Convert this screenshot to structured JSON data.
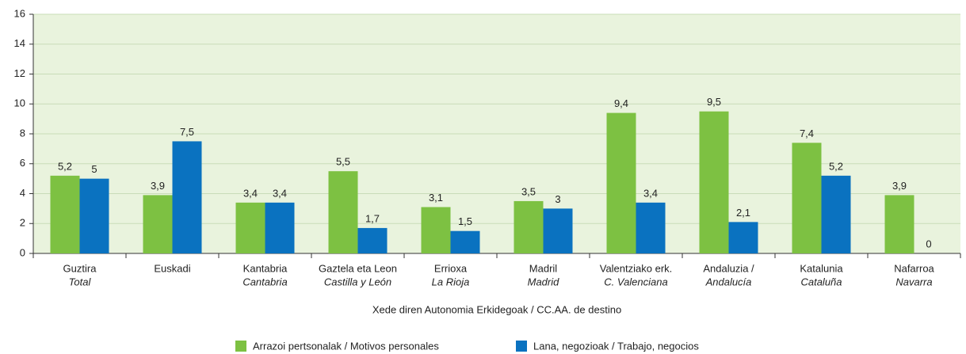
{
  "chart_data": {
    "type": "bar",
    "categories": [
      [
        "Guztira",
        "Total"
      ],
      [
        "Euskadi"
      ],
      [
        "Kantabria",
        "Cantabria"
      ],
      [
        "Gaztela eta Leon",
        "Castilla y León"
      ],
      [
        "Errioxa",
        "La Rioja"
      ],
      [
        "Madril",
        "Madrid"
      ],
      [
        "Valentziako erk.",
        "C. Valenciana"
      ],
      [
        "Andaluzia /",
        "Andalucía"
      ],
      [
        "Katalunia",
        "Cataluña"
      ],
      [
        "Nafarroa",
        "Navarra"
      ]
    ],
    "series": [
      {
        "name": "Arrazoi pertsonalak / Motivos personales",
        "color": "#7dc142",
        "values": [
          5.2,
          3.9,
          3.4,
          5.5,
          3.1,
          3.5,
          9.4,
          9.5,
          7.4,
          3.9
        ],
        "value_labels": [
          "5,2",
          "3,9",
          "3,4",
          "5,5",
          "3,1",
          "3,5",
          "9,4",
          "9,5",
          "7,4",
          "3,9"
        ]
      },
      {
        "name": "Lana, negozioak / Trabajo, negocios",
        "color": "#0a72c0",
        "values": [
          5,
          7.5,
          3.4,
          1.7,
          1.5,
          3,
          3.4,
          2.1,
          5.2,
          0
        ],
        "value_labels": [
          "5",
          "7,5",
          "3,4",
          "1,7",
          "1,5",
          "3",
          "3,4",
          "2,1",
          "5,2",
          "0"
        ]
      }
    ],
    "x_label": "Xede diren Autonomia Erkidegoak / CC.AA. de destino",
    "ylim": [
      0,
      16
    ],
    "yticks": [
      0,
      2,
      4,
      6,
      8,
      10,
      12,
      14,
      16
    ],
    "grid": true,
    "plot_background": "#e9f3dd"
  }
}
